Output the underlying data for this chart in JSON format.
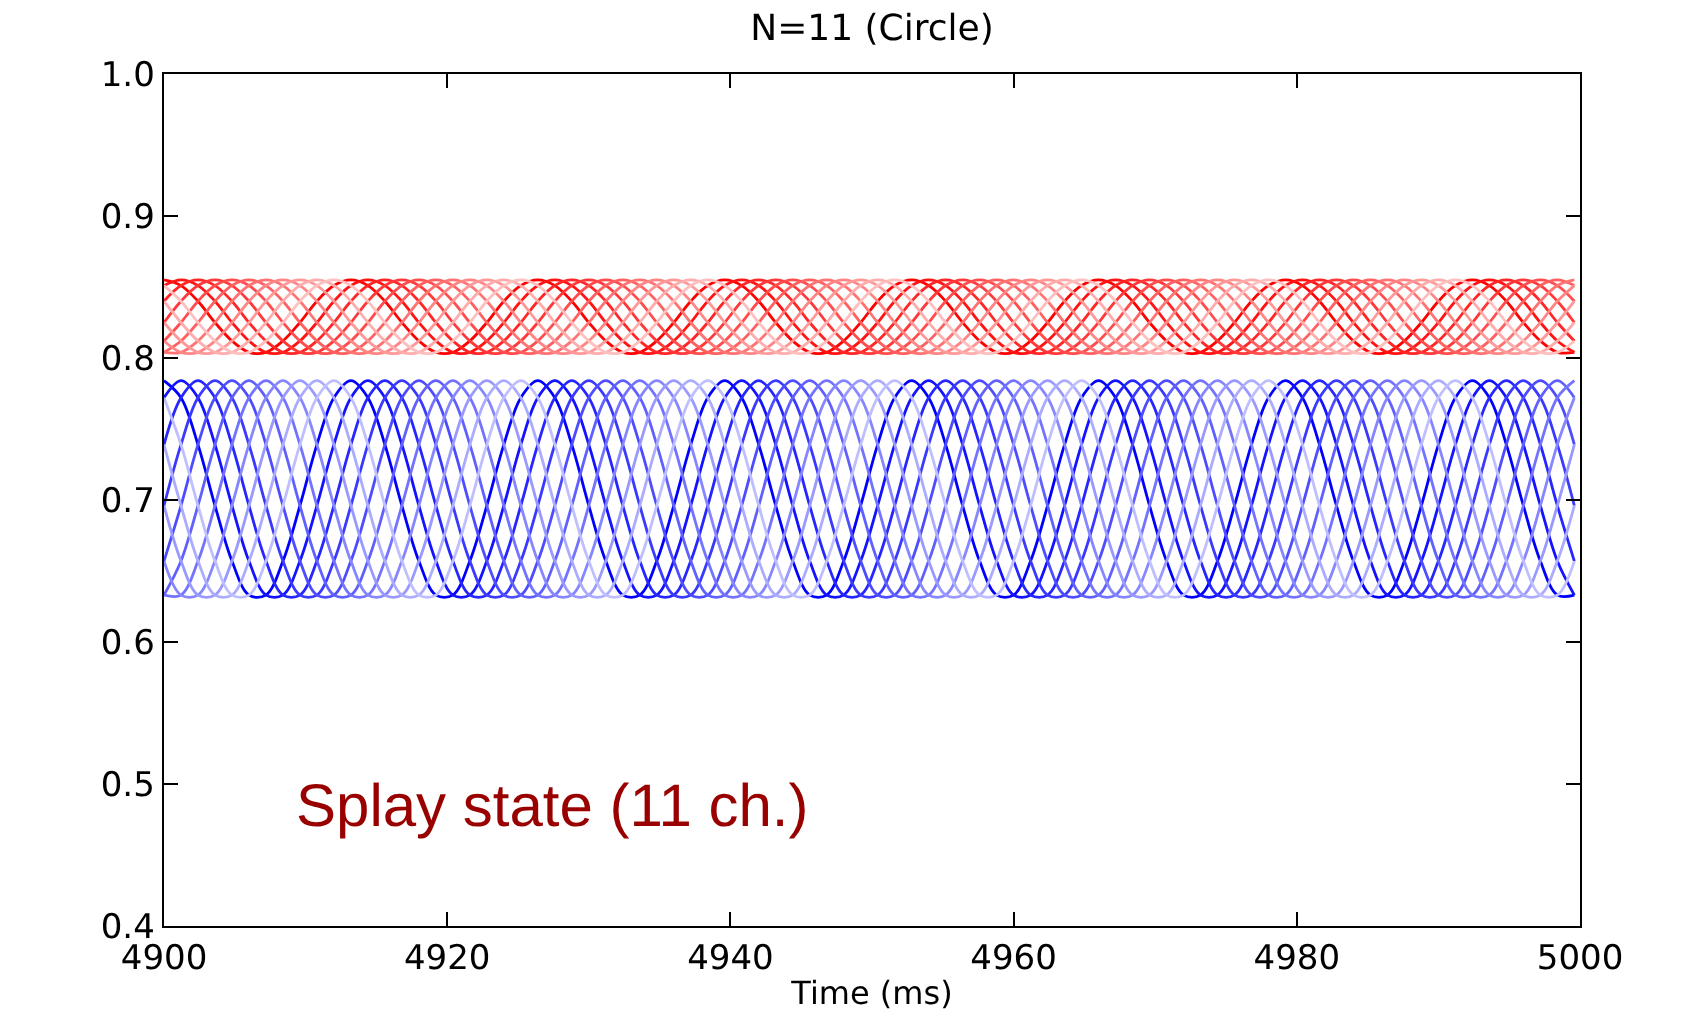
{
  "chart_data": {
    "type": "line",
    "title": "N=11 (Circle)",
    "xlabel": "Time (ms)",
    "annotations": [
      "Splay state (11 ch.)"
    ],
    "xlim": [
      4900,
      5000
    ],
    "xticks": [
      4900,
      4920,
      4940,
      4960,
      4980,
      5000
    ],
    "ylim": [
      0.4,
      1.0
    ],
    "yticks": [
      0.4,
      0.5,
      0.6,
      0.7,
      0.8,
      0.9,
      {
        "value": 1,
        "label": "1.0"
      }
    ],
    "x": [
      4900,
      4901.2,
      4902.4,
      4903.6,
      4904.8,
      4906,
      4907.2,
      4908.4,
      4909.6,
      4910.8,
      4912,
      4913.2,
      4914.4,
      4915.6,
      4916.8,
      4918,
      4919.2,
      4920.4,
      4921.6,
      4922.8,
      4924,
      4925.2,
      4926.4,
      4927.6,
      4928.8,
      4930,
      4931.2,
      4932.4,
      4933.6,
      4934.8,
      4936,
      4937.2,
      4938.4,
      4939.6,
      4940.8,
      4942,
      4943.2,
      4944.4,
      4945.6,
      4946.8,
      4948,
      4949.2,
      4950.4,
      4951.6,
      4952.8,
      4954,
      4955.2,
      4956.4,
      4957.6,
      4958.8,
      4960,
      4961.2,
      4962.4,
      4963.6,
      4964.8,
      4966,
      4967.2,
      4968.4,
      4969.6,
      4970.8,
      4972,
      4973.2,
      4974.4,
      4975.6,
      4976.8,
      4978,
      4979.2,
      4980.4,
      4981.6,
      4982.8,
      4984,
      4985.2,
      4986.4,
      4987.6,
      4988.8,
      4990,
      4991.2,
      4992.4,
      4993.6,
      4994.8,
      4996,
      4997.2,
      4998.4,
      4999.6
    ],
    "series": [
      {
        "color": "#ff0000",
        "values": [
          0.855,
          0.851,
          0.84,
          0.825,
          0.812,
          0.804,
          0.804,
          0.812,
          0.825,
          0.84,
          0.851,
          0.855,
          0.851,
          0.84,
          0.825,
          0.812,
          0.804,
          0.804,
          0.812,
          0.825,
          0.84,
          0.851,
          0.855,
          0.851,
          0.84,
          0.825,
          0.812,
          0.804,
          0.804,
          0.812,
          0.825,
          0.84,
          0.851,
          0.855,
          0.851,
          0.84,
          0.825,
          0.812,
          0.804,
          0.804,
          0.812,
          0.825,
          0.84,
          0.851,
          0.855,
          0.851,
          0.84,
          0.825,
          0.812,
          0.804,
          0.804,
          0.812,
          0.825,
          0.84,
          0.851,
          0.855,
          0.851,
          0.84,
          0.825,
          0.812,
          0.804,
          0.804,
          0.812,
          0.825,
          0.84,
          0.851,
          0.855,
          0.851,
          0.84,
          0.825,
          0.812,
          0.804,
          0.804,
          0.812,
          0.825,
          0.84,
          0.851,
          0.855,
          0.851,
          0.84,
          0.825,
          0.812,
          0.804,
          0.804
        ]
      },
      {
        "color": "#ff1313",
        "values": [
          0.851,
          0.855,
          0.851,
          0.84,
          0.825,
          0.812,
          0.804,
          0.804,
          0.812,
          0.825,
          0.84,
          0.851,
          0.855,
          0.851,
          0.84,
          0.825,
          0.812,
          0.804,
          0.804,
          0.812,
          0.825,
          0.84,
          0.851,
          0.855,
          0.851,
          0.84,
          0.825,
          0.812,
          0.804,
          0.804,
          0.812,
          0.825,
          0.84,
          0.851,
          0.855,
          0.851,
          0.84,
          0.825,
          0.812,
          0.804,
          0.804,
          0.812,
          0.825,
          0.84,
          0.851,
          0.855,
          0.851,
          0.84,
          0.825,
          0.812,
          0.804,
          0.804,
          0.812,
          0.825,
          0.84,
          0.851,
          0.855,
          0.851,
          0.84,
          0.825,
          0.812,
          0.804,
          0.804,
          0.812,
          0.825,
          0.84,
          0.851,
          0.855,
          0.851,
          0.84,
          0.825,
          0.812,
          0.804,
          0.804,
          0.812,
          0.825,
          0.84,
          0.851,
          0.855,
          0.851,
          0.84,
          0.825,
          0.812,
          0.804
        ]
      },
      {
        "color": "#ff2626",
        "values": [
          0.84,
          0.851,
          0.855,
          0.851,
          0.84,
          0.825,
          0.812,
          0.804,
          0.804,
          0.812,
          0.825,
          0.84,
          0.851,
          0.855,
          0.851,
          0.84,
          0.825,
          0.812,
          0.804,
          0.804,
          0.812,
          0.825,
          0.84,
          0.851,
          0.855,
          0.851,
          0.84,
          0.825,
          0.812,
          0.804,
          0.804,
          0.812,
          0.825,
          0.84,
          0.851,
          0.855,
          0.851,
          0.84,
          0.825,
          0.812,
          0.804,
          0.804,
          0.812,
          0.825,
          0.84,
          0.851,
          0.855,
          0.851,
          0.84,
          0.825,
          0.812,
          0.804,
          0.804,
          0.812,
          0.825,
          0.84,
          0.851,
          0.855,
          0.851,
          0.84,
          0.825,
          0.812,
          0.804,
          0.804,
          0.812,
          0.825,
          0.84,
          0.851,
          0.855,
          0.851,
          0.84,
          0.825,
          0.812,
          0.804,
          0.804,
          0.812,
          0.825,
          0.84,
          0.851,
          0.855,
          0.851,
          0.84,
          0.825,
          0.812
        ]
      },
      {
        "color": "#ff3939",
        "values": [
          0.825,
          0.84,
          0.851,
          0.855,
          0.851,
          0.84,
          0.825,
          0.812,
          0.804,
          0.804,
          0.812,
          0.825,
          0.84,
          0.851,
          0.855,
          0.851,
          0.84,
          0.825,
          0.812,
          0.804,
          0.804,
          0.812,
          0.825,
          0.84,
          0.851,
          0.855,
          0.851,
          0.84,
          0.825,
          0.812,
          0.804,
          0.804,
          0.812,
          0.825,
          0.84,
          0.851,
          0.855,
          0.851,
          0.84,
          0.825,
          0.812,
          0.804,
          0.804,
          0.812,
          0.825,
          0.84,
          0.851,
          0.855,
          0.851,
          0.84,
          0.825,
          0.812,
          0.804,
          0.804,
          0.812,
          0.825,
          0.84,
          0.851,
          0.855,
          0.851,
          0.84,
          0.825,
          0.812,
          0.804,
          0.804,
          0.812,
          0.825,
          0.84,
          0.851,
          0.855,
          0.851,
          0.84,
          0.825,
          0.812,
          0.804,
          0.804,
          0.812,
          0.825,
          0.84,
          0.851,
          0.855,
          0.851,
          0.84,
          0.825
        ]
      },
      {
        "color": "#ff4d4d",
        "values": [
          0.812,
          0.825,
          0.84,
          0.851,
          0.855,
          0.851,
          0.84,
          0.825,
          0.812,
          0.804,
          0.804,
          0.812,
          0.825,
          0.84,
          0.851,
          0.855,
          0.851,
          0.84,
          0.825,
          0.812,
          0.804,
          0.804,
          0.812,
          0.825,
          0.84,
          0.851,
          0.855,
          0.851,
          0.84,
          0.825,
          0.812,
          0.804,
          0.804,
          0.812,
          0.825,
          0.84,
          0.851,
          0.855,
          0.851,
          0.84,
          0.825,
          0.812,
          0.804,
          0.804,
          0.812,
          0.825,
          0.84,
          0.851,
          0.855,
          0.851,
          0.84,
          0.825,
          0.812,
          0.804,
          0.804,
          0.812,
          0.825,
          0.84,
          0.851,
          0.855,
          0.851,
          0.84,
          0.825,
          0.812,
          0.804,
          0.804,
          0.812,
          0.825,
          0.84,
          0.851,
          0.855,
          0.851,
          0.84,
          0.825,
          0.812,
          0.804,
          0.804,
          0.812,
          0.825,
          0.84,
          0.851,
          0.855,
          0.851,
          0.84
        ]
      },
      {
        "color": "#ff6060",
        "values": [
          0.804,
          0.812,
          0.825,
          0.84,
          0.851,
          0.855,
          0.851,
          0.84,
          0.825,
          0.812,
          0.804,
          0.804,
          0.812,
          0.825,
          0.84,
          0.851,
          0.855,
          0.851,
          0.84,
          0.825,
          0.812,
          0.804,
          0.804,
          0.812,
          0.825,
          0.84,
          0.851,
          0.855,
          0.851,
          0.84,
          0.825,
          0.812,
          0.804,
          0.804,
          0.812,
          0.825,
          0.84,
          0.851,
          0.855,
          0.851,
          0.84,
          0.825,
          0.812,
          0.804,
          0.804,
          0.812,
          0.825,
          0.84,
          0.851,
          0.855,
          0.851,
          0.84,
          0.825,
          0.812,
          0.804,
          0.804,
          0.812,
          0.825,
          0.84,
          0.851,
          0.855,
          0.851,
          0.84,
          0.825,
          0.812,
          0.804,
          0.804,
          0.812,
          0.825,
          0.84,
          0.851,
          0.855,
          0.851,
          0.84,
          0.825,
          0.812,
          0.804,
          0.804,
          0.812,
          0.825,
          0.84,
          0.851,
          0.855,
          0.851
        ]
      },
      {
        "color": "#ff7373",
        "values": [
          0.804,
          0.804,
          0.812,
          0.825,
          0.84,
          0.851,
          0.855,
          0.851,
          0.84,
          0.825,
          0.812,
          0.804,
          0.804,
          0.812,
          0.825,
          0.84,
          0.851,
          0.855,
          0.851,
          0.84,
          0.825,
          0.812,
          0.804,
          0.804,
          0.812,
          0.825,
          0.84,
          0.851,
          0.855,
          0.851,
          0.84,
          0.825,
          0.812,
          0.804,
          0.804,
          0.812,
          0.825,
          0.84,
          0.851,
          0.855,
          0.851,
          0.84,
          0.825,
          0.812,
          0.804,
          0.804,
          0.812,
          0.825,
          0.84,
          0.851,
          0.855,
          0.851,
          0.84,
          0.825,
          0.812,
          0.804,
          0.804,
          0.812,
          0.825,
          0.84,
          0.851,
          0.855,
          0.851,
          0.84,
          0.825,
          0.812,
          0.804,
          0.804,
          0.812,
          0.825,
          0.84,
          0.851,
          0.855,
          0.851,
          0.84,
          0.825,
          0.812,
          0.804,
          0.804,
          0.812,
          0.825,
          0.84,
          0.851,
          0.855
        ]
      },
      {
        "color": "#ff8686",
        "values": [
          0.812,
          0.804,
          0.804,
          0.812,
          0.825,
          0.84,
          0.851,
          0.855,
          0.851,
          0.84,
          0.825,
          0.812,
          0.804,
          0.804,
          0.812,
          0.825,
          0.84,
          0.851,
          0.855,
          0.851,
          0.84,
          0.825,
          0.812,
          0.804,
          0.804,
          0.812,
          0.825,
          0.84,
          0.851,
          0.855,
          0.851,
          0.84,
          0.825,
          0.812,
          0.804,
          0.804,
          0.812,
          0.825,
          0.84,
          0.851,
          0.855,
          0.851,
          0.84,
          0.825,
          0.812,
          0.804,
          0.804,
          0.812,
          0.825,
          0.84,
          0.851,
          0.855,
          0.851,
          0.84,
          0.825,
          0.812,
          0.804,
          0.804,
          0.812,
          0.825,
          0.84,
          0.851,
          0.855,
          0.851,
          0.84,
          0.825,
          0.812,
          0.804,
          0.804,
          0.812,
          0.825,
          0.84,
          0.851,
          0.855,
          0.851,
          0.84,
          0.825,
          0.812,
          0.804,
          0.804,
          0.812,
          0.825,
          0.84,
          0.851
        ]
      },
      {
        "color": "#ff9999",
        "values": [
          0.825,
          0.812,
          0.804,
          0.804,
          0.812,
          0.825,
          0.84,
          0.851,
          0.855,
          0.851,
          0.84,
          0.825,
          0.812,
          0.804,
          0.804,
          0.812,
          0.825,
          0.84,
          0.851,
          0.855,
          0.851,
          0.84,
          0.825,
          0.812,
          0.804,
          0.804,
          0.812,
          0.825,
          0.84,
          0.851,
          0.855,
          0.851,
          0.84,
          0.825,
          0.812,
          0.804,
          0.804,
          0.812,
          0.825,
          0.84,
          0.851,
          0.855,
          0.851,
          0.84,
          0.825,
          0.812,
          0.804,
          0.804,
          0.812,
          0.825,
          0.84,
          0.851,
          0.855,
          0.851,
          0.84,
          0.825,
          0.812,
          0.804,
          0.804,
          0.812,
          0.825,
          0.84,
          0.851,
          0.855,
          0.851,
          0.84,
          0.825,
          0.812,
          0.804,
          0.804,
          0.812,
          0.825,
          0.84,
          0.851,
          0.855,
          0.851,
          0.84,
          0.825,
          0.812,
          0.804,
          0.804,
          0.812,
          0.825,
          0.84
        ]
      },
      {
        "color": "#ffacac",
        "values": [
          0.84,
          0.825,
          0.812,
          0.804,
          0.804,
          0.812,
          0.825,
          0.84,
          0.851,
          0.855,
          0.851,
          0.84,
          0.825,
          0.812,
          0.804,
          0.804,
          0.812,
          0.825,
          0.84,
          0.851,
          0.855,
          0.851,
          0.84,
          0.825,
          0.812,
          0.804,
          0.804,
          0.812,
          0.825,
          0.84,
          0.851,
          0.855,
          0.851,
          0.84,
          0.825,
          0.812,
          0.804,
          0.804,
          0.812,
          0.825,
          0.84,
          0.851,
          0.855,
          0.851,
          0.84,
          0.825,
          0.812,
          0.804,
          0.804,
          0.812,
          0.825,
          0.84,
          0.851,
          0.855,
          0.851,
          0.84,
          0.825,
          0.812,
          0.804,
          0.804,
          0.812,
          0.825,
          0.84,
          0.851,
          0.855,
          0.851,
          0.84,
          0.825,
          0.812,
          0.804,
          0.804,
          0.812,
          0.825,
          0.84,
          0.851,
          0.855,
          0.851,
          0.84,
          0.825,
          0.812,
          0.804,
          0.804,
          0.812,
          0.825
        ]
      },
      {
        "color": "#ffbfbf",
        "values": [
          0.851,
          0.84,
          0.825,
          0.812,
          0.804,
          0.804,
          0.812,
          0.825,
          0.84,
          0.851,
          0.855,
          0.851,
          0.84,
          0.825,
          0.812,
          0.804,
          0.804,
          0.812,
          0.825,
          0.84,
          0.851,
          0.855,
          0.851,
          0.84,
          0.825,
          0.812,
          0.804,
          0.804,
          0.812,
          0.825,
          0.84,
          0.851,
          0.855,
          0.851,
          0.84,
          0.825,
          0.812,
          0.804,
          0.804,
          0.812,
          0.825,
          0.84,
          0.851,
          0.855,
          0.851,
          0.84,
          0.825,
          0.812,
          0.804,
          0.804,
          0.812,
          0.825,
          0.84,
          0.851,
          0.855,
          0.851,
          0.84,
          0.825,
          0.812,
          0.804,
          0.804,
          0.812,
          0.825,
          0.84,
          0.851,
          0.855,
          0.851,
          0.84,
          0.825,
          0.812,
          0.804,
          0.804,
          0.812,
          0.825,
          0.84,
          0.851,
          0.855,
          0.851,
          0.84,
          0.825,
          0.812,
          0.804,
          0.804,
          0.812
        ]
      },
      {
        "color": "#0000ff",
        "values": [
          0.784,
          0.772,
          0.739,
          0.696,
          0.657,
          0.633,
          0.633,
          0.657,
          0.696,
          0.739,
          0.772,
          0.784,
          0.772,
          0.739,
          0.696,
          0.657,
          0.633,
          0.633,
          0.657,
          0.696,
          0.739,
          0.772,
          0.784,
          0.772,
          0.739,
          0.696,
          0.657,
          0.633,
          0.633,
          0.657,
          0.696,
          0.739,
          0.772,
          0.784,
          0.772,
          0.739,
          0.696,
          0.657,
          0.633,
          0.633,
          0.657,
          0.696,
          0.739,
          0.772,
          0.784,
          0.772,
          0.739,
          0.696,
          0.657,
          0.633,
          0.633,
          0.657,
          0.696,
          0.739,
          0.772,
          0.784,
          0.772,
          0.739,
          0.696,
          0.657,
          0.633,
          0.633,
          0.657,
          0.696,
          0.739,
          0.772,
          0.784,
          0.772,
          0.739,
          0.696,
          0.657,
          0.633,
          0.633,
          0.657,
          0.696,
          0.739,
          0.772,
          0.784,
          0.772,
          0.739,
          0.696,
          0.657,
          0.633,
          0.633
        ]
      },
      {
        "color": "#1313ff",
        "values": [
          0.772,
          0.784,
          0.772,
          0.739,
          0.696,
          0.657,
          0.633,
          0.633,
          0.657,
          0.696,
          0.739,
          0.772,
          0.784,
          0.772,
          0.739,
          0.696,
          0.657,
          0.633,
          0.633,
          0.657,
          0.696,
          0.739,
          0.772,
          0.784,
          0.772,
          0.739,
          0.696,
          0.657,
          0.633,
          0.633,
          0.657,
          0.696,
          0.739,
          0.772,
          0.784,
          0.772,
          0.739,
          0.696,
          0.657,
          0.633,
          0.633,
          0.657,
          0.696,
          0.739,
          0.772,
          0.784,
          0.772,
          0.739,
          0.696,
          0.657,
          0.633,
          0.633,
          0.657,
          0.696,
          0.739,
          0.772,
          0.784,
          0.772,
          0.739,
          0.696,
          0.657,
          0.633,
          0.633,
          0.657,
          0.696,
          0.739,
          0.772,
          0.784,
          0.772,
          0.739,
          0.696,
          0.657,
          0.633,
          0.633,
          0.657,
          0.696,
          0.739,
          0.772,
          0.784,
          0.772,
          0.739,
          0.696,
          0.657,
          0.633
        ]
      },
      {
        "color": "#2626ff",
        "values": [
          0.739,
          0.772,
          0.784,
          0.772,
          0.739,
          0.696,
          0.657,
          0.633,
          0.633,
          0.657,
          0.696,
          0.739,
          0.772,
          0.784,
          0.772,
          0.739,
          0.696,
          0.657,
          0.633,
          0.633,
          0.657,
          0.696,
          0.739,
          0.772,
          0.784,
          0.772,
          0.739,
          0.696,
          0.657,
          0.633,
          0.633,
          0.657,
          0.696,
          0.739,
          0.772,
          0.784,
          0.772,
          0.739,
          0.696,
          0.657,
          0.633,
          0.633,
          0.657,
          0.696,
          0.739,
          0.772,
          0.784,
          0.772,
          0.739,
          0.696,
          0.657,
          0.633,
          0.633,
          0.657,
          0.696,
          0.739,
          0.772,
          0.784,
          0.772,
          0.739,
          0.696,
          0.657,
          0.633,
          0.633,
          0.657,
          0.696,
          0.739,
          0.772,
          0.784,
          0.772,
          0.739,
          0.696,
          0.657,
          0.633,
          0.633,
          0.657,
          0.696,
          0.739,
          0.772,
          0.784,
          0.772,
          0.739,
          0.696,
          0.657
        ]
      },
      {
        "color": "#3939ff",
        "values": [
          0.696,
          0.739,
          0.772,
          0.784,
          0.772,
          0.739,
          0.696,
          0.657,
          0.633,
          0.633,
          0.657,
          0.696,
          0.739,
          0.772,
          0.784,
          0.772,
          0.739,
          0.696,
          0.657,
          0.633,
          0.633,
          0.657,
          0.696,
          0.739,
          0.772,
          0.784,
          0.772,
          0.739,
          0.696,
          0.657,
          0.633,
          0.633,
          0.657,
          0.696,
          0.739,
          0.772,
          0.784,
          0.772,
          0.739,
          0.696,
          0.657,
          0.633,
          0.633,
          0.657,
          0.696,
          0.739,
          0.772,
          0.784,
          0.772,
          0.739,
          0.696,
          0.657,
          0.633,
          0.633,
          0.657,
          0.696,
          0.739,
          0.772,
          0.784,
          0.772,
          0.739,
          0.696,
          0.657,
          0.633,
          0.633,
          0.657,
          0.696,
          0.739,
          0.772,
          0.784,
          0.772,
          0.739,
          0.696,
          0.657,
          0.633,
          0.633,
          0.657,
          0.696,
          0.739,
          0.772,
          0.784,
          0.772,
          0.739,
          0.696
        ]
      },
      {
        "color": "#4d4dff",
        "values": [
          0.657,
          0.696,
          0.739,
          0.772,
          0.784,
          0.772,
          0.739,
          0.696,
          0.657,
          0.633,
          0.633,
          0.657,
          0.696,
          0.739,
          0.772,
          0.784,
          0.772,
          0.739,
          0.696,
          0.657,
          0.633,
          0.633,
          0.657,
          0.696,
          0.739,
          0.772,
          0.784,
          0.772,
          0.739,
          0.696,
          0.657,
          0.633,
          0.633,
          0.657,
          0.696,
          0.739,
          0.772,
          0.784,
          0.772,
          0.739,
          0.696,
          0.657,
          0.633,
          0.633,
          0.657,
          0.696,
          0.739,
          0.772,
          0.784,
          0.772,
          0.739,
          0.696,
          0.657,
          0.633,
          0.633,
          0.657,
          0.696,
          0.739,
          0.772,
          0.784,
          0.772,
          0.739,
          0.696,
          0.657,
          0.633,
          0.633,
          0.657,
          0.696,
          0.739,
          0.772,
          0.784,
          0.772,
          0.739,
          0.696,
          0.657,
          0.633,
          0.633,
          0.657,
          0.696,
          0.739,
          0.772,
          0.784,
          0.772,
          0.739
        ]
      },
      {
        "color": "#6060ff",
        "values": [
          0.633,
          0.657,
          0.696,
          0.739,
          0.772,
          0.784,
          0.772,
          0.739,
          0.696,
          0.657,
          0.633,
          0.633,
          0.657,
          0.696,
          0.739,
          0.772,
          0.784,
          0.772,
          0.739,
          0.696,
          0.657,
          0.633,
          0.633,
          0.657,
          0.696,
          0.739,
          0.772,
          0.784,
          0.772,
          0.739,
          0.696,
          0.657,
          0.633,
          0.633,
          0.657,
          0.696,
          0.739,
          0.772,
          0.784,
          0.772,
          0.739,
          0.696,
          0.657,
          0.633,
          0.633,
          0.657,
          0.696,
          0.739,
          0.772,
          0.784,
          0.772,
          0.739,
          0.696,
          0.657,
          0.633,
          0.633,
          0.657,
          0.696,
          0.739,
          0.772,
          0.784,
          0.772,
          0.739,
          0.696,
          0.657,
          0.633,
          0.633,
          0.657,
          0.696,
          0.739,
          0.772,
          0.784,
          0.772,
          0.739,
          0.696,
          0.657,
          0.633,
          0.633,
          0.657,
          0.696,
          0.739,
          0.772,
          0.784,
          0.772
        ]
      },
      {
        "color": "#7373ff",
        "values": [
          0.633,
          0.633,
          0.657,
          0.696,
          0.739,
          0.772,
          0.784,
          0.772,
          0.739,
          0.696,
          0.657,
          0.633,
          0.633,
          0.657,
          0.696,
          0.739,
          0.772,
          0.784,
          0.772,
          0.739,
          0.696,
          0.657,
          0.633,
          0.633,
          0.657,
          0.696,
          0.739,
          0.772,
          0.784,
          0.772,
          0.739,
          0.696,
          0.657,
          0.633,
          0.633,
          0.657,
          0.696,
          0.739,
          0.772,
          0.784,
          0.772,
          0.739,
          0.696,
          0.657,
          0.633,
          0.633,
          0.657,
          0.696,
          0.739,
          0.772,
          0.784,
          0.772,
          0.739,
          0.696,
          0.657,
          0.633,
          0.633,
          0.657,
          0.696,
          0.739,
          0.772,
          0.784,
          0.772,
          0.739,
          0.696,
          0.657,
          0.633,
          0.633,
          0.657,
          0.696,
          0.739,
          0.772,
          0.784,
          0.772,
          0.739,
          0.696,
          0.657,
          0.633,
          0.633,
          0.657,
          0.696,
          0.739,
          0.772,
          0.784
        ]
      },
      {
        "color": "#8686ff",
        "values": [
          0.657,
          0.633,
          0.633,
          0.657,
          0.696,
          0.739,
          0.772,
          0.784,
          0.772,
          0.739,
          0.696,
          0.657,
          0.633,
          0.633,
          0.657,
          0.696,
          0.739,
          0.772,
          0.784,
          0.772,
          0.739,
          0.696,
          0.657,
          0.633,
          0.633,
          0.657,
          0.696,
          0.739,
          0.772,
          0.784,
          0.772,
          0.739,
          0.696,
          0.657,
          0.633,
          0.633,
          0.657,
          0.696,
          0.739,
          0.772,
          0.784,
          0.772,
          0.739,
          0.696,
          0.657,
          0.633,
          0.633,
          0.657,
          0.696,
          0.739,
          0.772,
          0.784,
          0.772,
          0.739,
          0.696,
          0.657,
          0.633,
          0.633,
          0.657,
          0.696,
          0.739,
          0.772,
          0.784,
          0.772,
          0.739,
          0.696,
          0.657,
          0.633,
          0.633,
          0.657,
          0.696,
          0.739,
          0.772,
          0.784,
          0.772,
          0.739,
          0.696,
          0.657,
          0.633,
          0.633,
          0.657,
          0.696,
          0.739,
          0.772
        ]
      },
      {
        "color": "#9999ff",
        "values": [
          0.696,
          0.657,
          0.633,
          0.633,
          0.657,
          0.696,
          0.739,
          0.772,
          0.784,
          0.772,
          0.739,
          0.696,
          0.657,
          0.633,
          0.633,
          0.657,
          0.696,
          0.739,
          0.772,
          0.784,
          0.772,
          0.739,
          0.696,
          0.657,
          0.633,
          0.633,
          0.657,
          0.696,
          0.739,
          0.772,
          0.784,
          0.772,
          0.739,
          0.696,
          0.657,
          0.633,
          0.633,
          0.657,
          0.696,
          0.739,
          0.772,
          0.784,
          0.772,
          0.739,
          0.696,
          0.657,
          0.633,
          0.633,
          0.657,
          0.696,
          0.739,
          0.772,
          0.784,
          0.772,
          0.739,
          0.696,
          0.657,
          0.633,
          0.633,
          0.657,
          0.696,
          0.739,
          0.772,
          0.784,
          0.772,
          0.739,
          0.696,
          0.657,
          0.633,
          0.633,
          0.657,
          0.696,
          0.739,
          0.772,
          0.784,
          0.772,
          0.739,
          0.696,
          0.657,
          0.633,
          0.633,
          0.657,
          0.696,
          0.739
        ]
      },
      {
        "color": "#acacff",
        "values": [
          0.739,
          0.696,
          0.657,
          0.633,
          0.633,
          0.657,
          0.696,
          0.739,
          0.772,
          0.784,
          0.772,
          0.739,
          0.696,
          0.657,
          0.633,
          0.633,
          0.657,
          0.696,
          0.739,
          0.772,
          0.784,
          0.772,
          0.739,
          0.696,
          0.657,
          0.633,
          0.633,
          0.657,
          0.696,
          0.739,
          0.772,
          0.784,
          0.772,
          0.739,
          0.696,
          0.657,
          0.633,
          0.633,
          0.657,
          0.696,
          0.739,
          0.772,
          0.784,
          0.772,
          0.739,
          0.696,
          0.657,
          0.633,
          0.633,
          0.657,
          0.696,
          0.739,
          0.772,
          0.784,
          0.772,
          0.739,
          0.696,
          0.657,
          0.633,
          0.633,
          0.657,
          0.696,
          0.739,
          0.772,
          0.784,
          0.772,
          0.739,
          0.696,
          0.657,
          0.633,
          0.633,
          0.657,
          0.696,
          0.739,
          0.772,
          0.784,
          0.772,
          0.739,
          0.696,
          0.657,
          0.633,
          0.633,
          0.657,
          0.696
        ]
      },
      {
        "color": "#bfbfff",
        "values": [
          0.772,
          0.739,
          0.696,
          0.657,
          0.633,
          0.633,
          0.657,
          0.696,
          0.739,
          0.772,
          0.784,
          0.772,
          0.739,
          0.696,
          0.657,
          0.633,
          0.633,
          0.657,
          0.696,
          0.739,
          0.772,
          0.784,
          0.772,
          0.739,
          0.696,
          0.657,
          0.633,
          0.633,
          0.657,
          0.696,
          0.739,
          0.772,
          0.784,
          0.772,
          0.739,
          0.696,
          0.657,
          0.633,
          0.633,
          0.657,
          0.696,
          0.739,
          0.772,
          0.784,
          0.772,
          0.739,
          0.696,
          0.657,
          0.633,
          0.633,
          0.657,
          0.696,
          0.739,
          0.772,
          0.784,
          0.772,
          0.739,
          0.696,
          0.657,
          0.633,
          0.633,
          0.657,
          0.696,
          0.739,
          0.772,
          0.784,
          0.772,
          0.739,
          0.696,
          0.657,
          0.633,
          0.633,
          0.657,
          0.696,
          0.739,
          0.772,
          0.784,
          0.772,
          0.739,
          0.696,
          0.657,
          0.633,
          0.633,
          0.657
        ]
      }
    ]
  }
}
